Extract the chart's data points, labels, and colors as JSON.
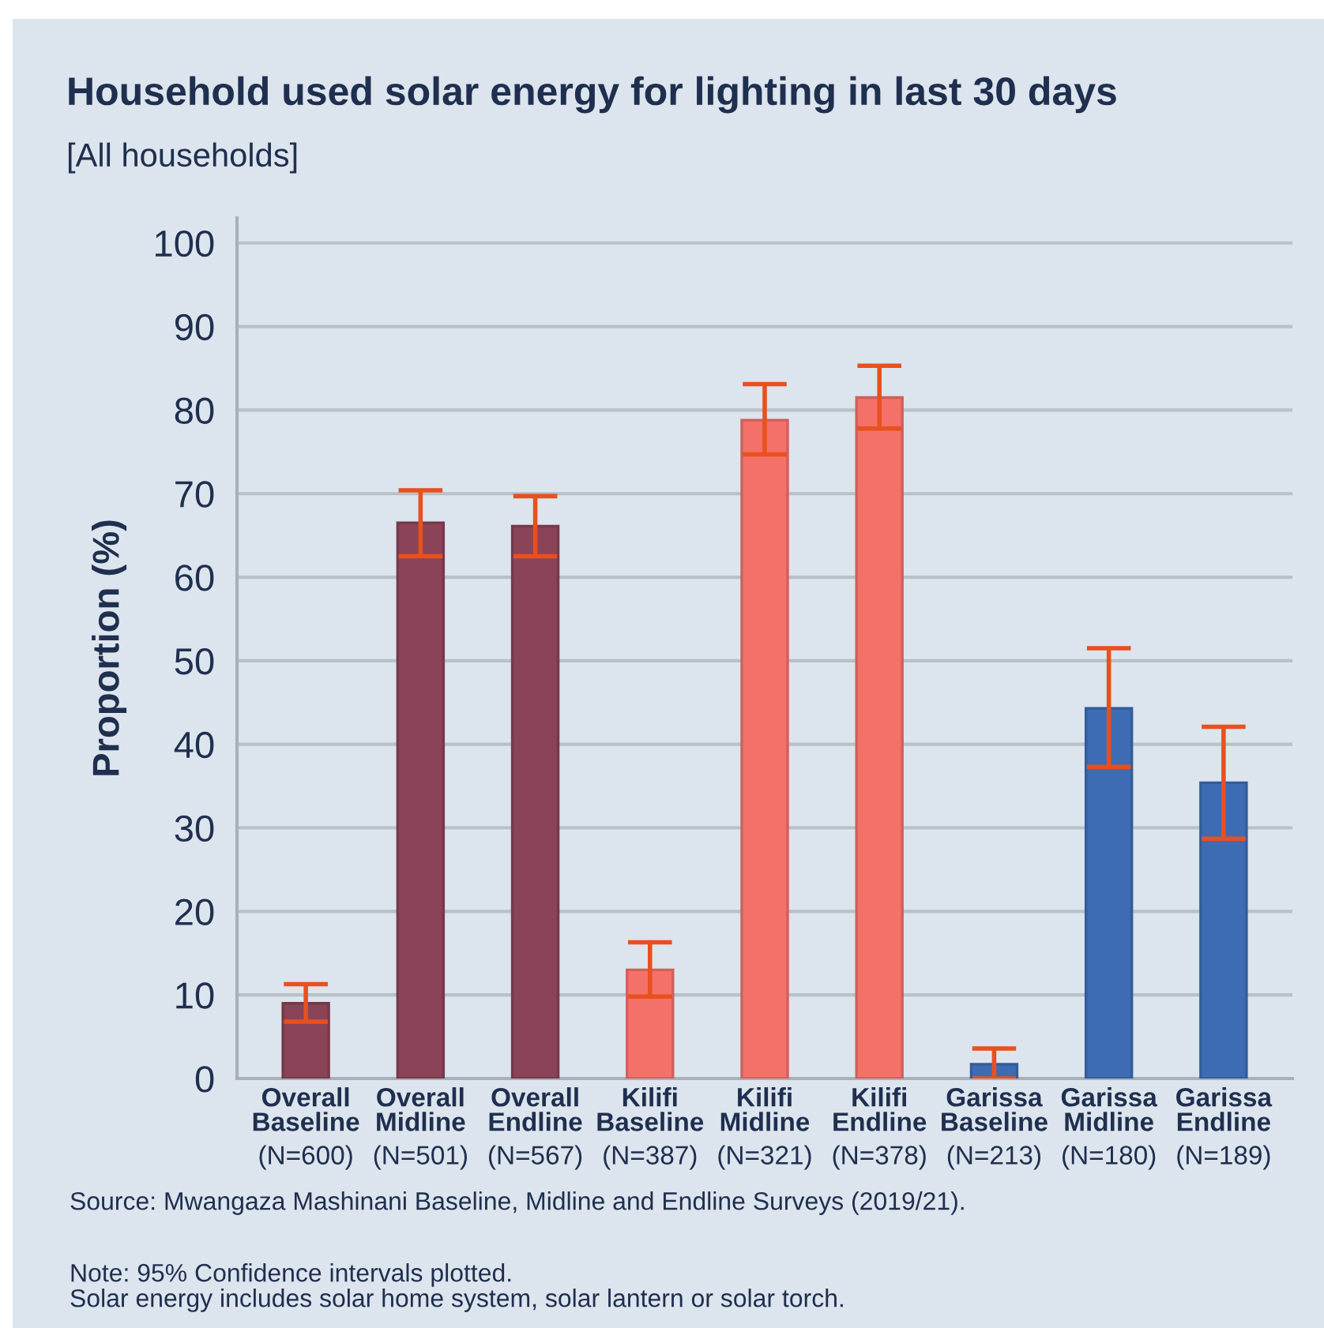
{
  "chart_data": {
    "type": "bar",
    "title": "Household used solar energy for lighting in last 30 days",
    "subtitle": "[All households]",
    "ylabel": "Proportion (%)",
    "categories": [
      "Overall\nBaseline\n(N=600)",
      "Overall\nMidline\n(N=501)",
      "Overall\nEndline\n(N=567)",
      "Kilifi\nBaseline\n(N=387)",
      "Kilifi\nMidline\n(N=321)",
      "Kilifi\nEndline\n(N=378)",
      "Garissa\nBaseline\n(N=213)",
      "Garissa\nMidline\n(N=180)",
      "Garissa\nEndline\n(N=189)"
    ],
    "values": [
      9.0,
      66.5,
      66.1,
      13.0,
      78.8,
      81.5,
      1.7,
      44.3,
      35.4
    ],
    "errors": [
      [
        6.8,
        11.3
      ],
      [
        62.5,
        70.4
      ],
      [
        62.5,
        69.7
      ],
      [
        9.8,
        16.3
      ],
      [
        74.7,
        83.1
      ],
      [
        77.8,
        85.3
      ],
      [
        0,
        3.6
      ],
      [
        37.3,
        51.5
      ],
      [
        28.7,
        42.1
      ]
    ],
    "colors": [
      "#8b4357",
      "#8b4357",
      "#8b4357",
      "#f4716a",
      "#f4716a",
      "#f4716a",
      "#3d6cb5",
      "#3d6cb5",
      "#3d6cb5"
    ],
    "ylim": [
      0,
      103
    ],
    "yticks": [
      0,
      10,
      20,
      30,
      40,
      50,
      60,
      70,
      80,
      90,
      100
    ],
    "grid": "y",
    "annotations": [
      "Source: Mwangaza Mashinani Baseline, Midline and Endline Surveys (2019/21).",
      "Note: 95% Confidence intervals plotted.\nSolar energy includes solar home system, solar lantern or solar torch."
    ]
  }
}
